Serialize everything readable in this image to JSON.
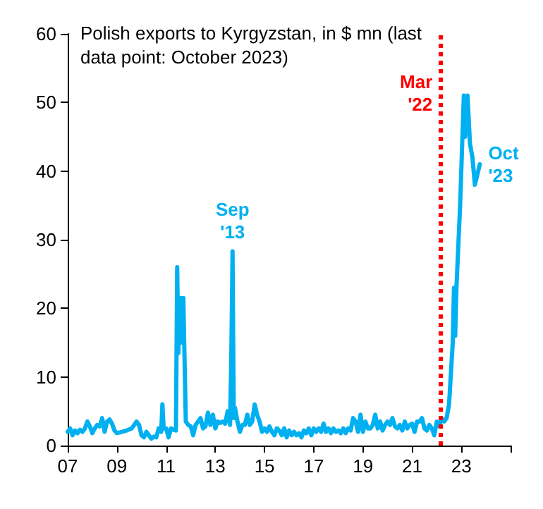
{
  "chart_data": {
    "type": "line",
    "title": "Polish exports to Kyrgyzstan, in $ mn (last\ndata point: October 2023)",
    "x": [
      2007.0,
      2007.1,
      2007.2,
      2007.3,
      2007.4,
      2007.5,
      2007.6,
      2007.7,
      2007.8,
      2007.9,
      2008.0,
      2008.1,
      2008.2,
      2008.3,
      2008.4,
      2008.5,
      2008.6,
      2008.7,
      2008.8,
      2008.9,
      2009.0,
      2009.2,
      2009.4,
      2009.6,
      2009.8,
      2009.9,
      2010.0,
      2010.1,
      2010.2,
      2010.3,
      2010.4,
      2010.5,
      2010.6,
      2010.7,
      2010.8,
      2010.85,
      2010.9,
      2011.0,
      2011.1,
      2011.2,
      2011.3,
      2011.4,
      2011.45,
      2011.5,
      2011.55,
      2011.6,
      2011.65,
      2011.7,
      2011.8,
      2011.9,
      2012.0,
      2012.1,
      2012.2,
      2012.3,
      2012.4,
      2012.5,
      2012.6,
      2012.7,
      2012.8,
      2012.9,
      2013.0,
      2013.1,
      2013.2,
      2013.3,
      2013.4,
      2013.5,
      2013.6,
      2013.65,
      2013.7,
      2013.75,
      2013.8,
      2013.9,
      2014.0,
      2014.1,
      2014.2,
      2014.3,
      2014.4,
      2014.5,
      2014.6,
      2014.7,
      2014.8,
      2014.9,
      2015.0,
      2015.1,
      2015.2,
      2015.3,
      2015.4,
      2015.5,
      2015.6,
      2015.7,
      2015.8,
      2015.9,
      2016.0,
      2016.1,
      2016.2,
      2016.3,
      2016.4,
      2016.5,
      2016.6,
      2016.7,
      2016.8,
      2016.9,
      2017.0,
      2017.1,
      2017.2,
      2017.3,
      2017.4,
      2017.5,
      2017.6,
      2017.7,
      2017.8,
      2017.9,
      2018.0,
      2018.1,
      2018.2,
      2018.3,
      2018.4,
      2018.5,
      2018.6,
      2018.7,
      2018.8,
      2018.9,
      2019.0,
      2019.1,
      2019.2,
      2019.3,
      2019.4,
      2019.5,
      2019.6,
      2019.7,
      2019.8,
      2019.9,
      2020.0,
      2020.1,
      2020.2,
      2020.3,
      2020.4,
      2020.5,
      2020.6,
      2020.7,
      2020.8,
      2020.9,
      2021.0,
      2021.1,
      2021.2,
      2021.3,
      2021.4,
      2021.5,
      2021.6,
      2021.7,
      2021.8,
      2021.9,
      2022.0,
      2022.1,
      2022.2,
      2022.3,
      2022.4,
      2022.5,
      2022.65,
      2022.7,
      2022.75,
      2022.8,
      2022.95,
      2023.1,
      2023.15,
      2023.25,
      2023.35,
      2023.45,
      2023.55,
      2023.75
    ],
    "series": [
      {
        "color": "#00b0f0",
        "values": [
          2,
          2.5,
          1.5,
          2.2,
          1.8,
          2.3,
          2,
          2.5,
          3.5,
          2.8,
          1.8,
          2.5,
          3,
          2.8,
          4,
          2,
          3.5,
          3.8,
          3.2,
          2.2,
          1.8,
          2,
          2.2,
          2.5,
          3.5,
          3,
          1.5,
          1.2,
          2,
          1.5,
          1,
          1.3,
          1.2,
          2.5,
          2,
          6,
          2.5,
          2.5,
          1.2,
          2.5,
          2.3,
          2.2,
          26,
          13.5,
          21,
          21.5,
          15,
          21.5,
          3.5,
          3,
          2.8,
          1.5,
          3,
          3.5,
          4,
          2.5,
          2.8,
          4.8,
          3,
          4.5,
          2.5,
          3.5,
          3.3,
          3.5,
          3.2,
          5,
          3,
          13,
          28.3,
          4,
          5.5,
          3.5,
          2,
          3,
          3,
          4.5,
          3,
          3.5,
          6,
          4.5,
          3.5,
          2,
          2.5,
          2,
          2.8,
          2,
          1.5,
          2.5,
          2.2,
          1.5,
          2.5,
          1.2,
          2.2,
          1.5,
          2,
          1.5,
          1.8,
          1.2,
          2.2,
          1.8,
          2.5,
          1.5,
          2.5,
          2,
          2.5,
          2,
          3.2,
          2,
          2.5,
          1.8,
          2.5,
          2,
          2.2,
          1.8,
          2.5,
          1.8,
          2.5,
          2.2,
          4,
          3.5,
          2,
          4.5,
          2,
          3.5,
          2.5,
          2.5,
          3,
          4.5,
          2.5,
          3.5,
          2.2,
          3,
          3.5,
          3,
          4,
          2.8,
          2.5,
          3,
          2.2,
          3.5,
          2.5,
          3,
          3.2,
          2,
          3.5,
          3.5,
          4,
          2.5,
          2.2,
          3,
          2.5,
          1.5,
          3.5,
          2.8,
          4,
          3.5,
          4,
          6,
          15,
          23,
          16,
          23,
          35,
          51,
          45,
          51,
          44,
          42,
          38,
          41
        ]
      }
    ],
    "xlim": [
      2007,
      2025
    ],
    "xticks": [
      {
        "value": 2007,
        "label": "07"
      },
      {
        "value": 2009,
        "label": "09"
      },
      {
        "value": 2011,
        "label": "11"
      },
      {
        "value": 2013,
        "label": "13"
      },
      {
        "value": 2015,
        "label": "15"
      },
      {
        "value": 2017,
        "label": "17"
      },
      {
        "value": 2019,
        "label": "19"
      },
      {
        "value": 2021,
        "label": "21"
      },
      {
        "value": 2023,
        "label": "23"
      },
      {
        "value": 2025,
        "label": null
      }
    ],
    "ylim": [
      0,
      60
    ],
    "yticks": [
      0,
      10,
      20,
      30,
      40,
      50,
      60
    ],
    "ref_lines": [
      {
        "axis": "x",
        "value": 2022.17,
        "label": "Mar\n'22",
        "color": "#ff0000",
        "line_style": "dotted"
      }
    ],
    "annotations": [
      {
        "text": "Sep\n'13",
        "x": 2013.7,
        "y": 28.3
      },
      {
        "text": "Oct\n'23",
        "x": 2023.75,
        "y": 41
      }
    ],
    "grid": false,
    "marker": "none",
    "line_style": "solid"
  }
}
